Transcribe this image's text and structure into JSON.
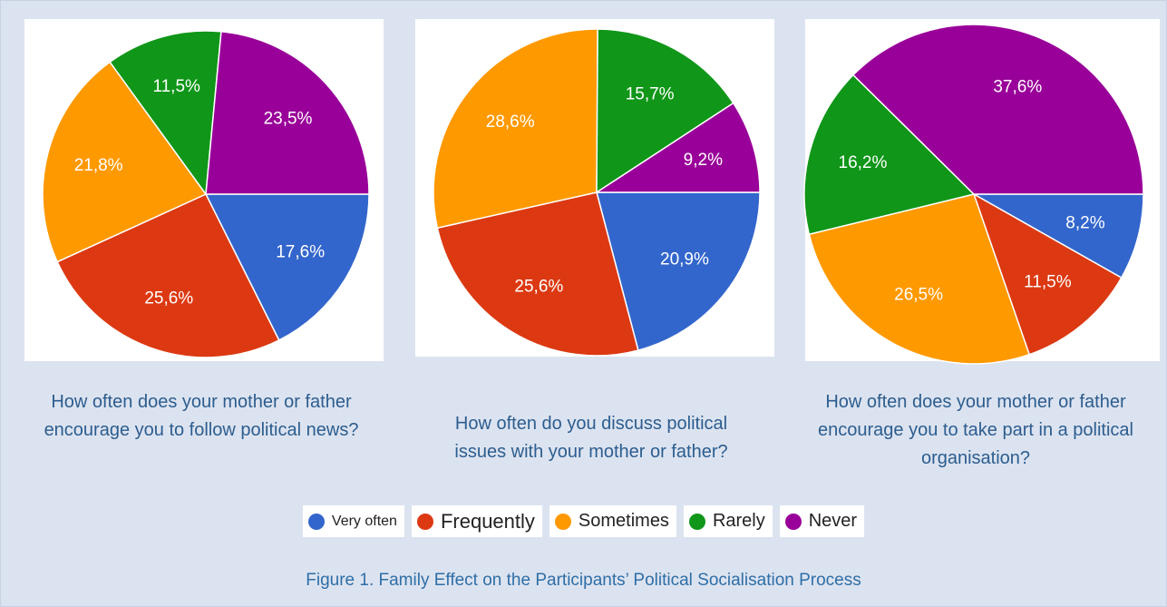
{
  "chart_data": [
    {
      "type": "pie",
      "title": "How often does your mother or father encourage you to follow political news?",
      "categories": [
        "Very often",
        "Frequently",
        "Sometimes",
        "Rarely",
        "Never"
      ],
      "values": [
        17.6,
        25.6,
        21.8,
        11.5,
        23.5
      ],
      "value_labels": [
        "17,6%",
        "25,6%",
        "21,8%",
        "11,5%",
        "23,5%"
      ],
      "colors": [
        "#3366cc",
        "#dc3912",
        "#ff9900",
        "#109618",
        "#990099"
      ]
    },
    {
      "type": "pie",
      "title": "How often do you discuss political issues with your mother or father?",
      "categories": [
        "Very often",
        "Frequently",
        "Sometimes",
        "Rarely",
        "Never"
      ],
      "values": [
        20.9,
        25.6,
        28.6,
        15.7,
        9.2
      ],
      "value_labels": [
        "20,9%",
        "25,6%",
        "28,6%",
        "15,7%",
        "9,2%"
      ],
      "colors": [
        "#3366cc",
        "#dc3912",
        "#ff9900",
        "#109618",
        "#990099"
      ]
    },
    {
      "type": "pie",
      "title": "How often does your mother or father encourage you to take part in a political organisation?",
      "categories": [
        "Very often",
        "Frequently",
        "Sometimes",
        "Rarely",
        "Never"
      ],
      "values": [
        8.2,
        11.5,
        26.5,
        16.2,
        37.6
      ],
      "value_labels": [
        "8,2%",
        "11,5%",
        "26,5%",
        "16,2%",
        "37,6%"
      ],
      "colors": [
        "#3366cc",
        "#dc3912",
        "#ff9900",
        "#109618",
        "#990099"
      ]
    }
  ],
  "caption": "Figure 1. Family Effect on the Participants’ Political Socialisation Process"
}
